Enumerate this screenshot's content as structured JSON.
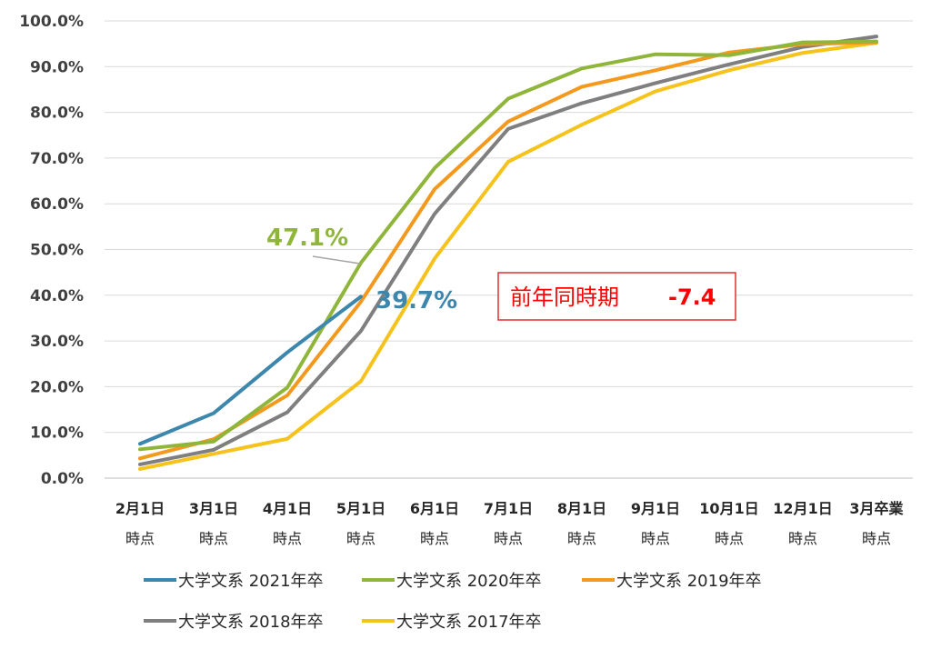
{
  "chart_data": {
    "type": "line",
    "categories": [
      [
        "2月1日",
        "時点"
      ],
      [
        "3月1日",
        "時点"
      ],
      [
        "4月1日",
        "時点"
      ],
      [
        "5月1日",
        "時点"
      ],
      [
        "6月1日",
        "時点"
      ],
      [
        "7月1日",
        "時点"
      ],
      [
        "8月1日",
        "時点"
      ],
      [
        "9月1日",
        "時点"
      ],
      [
        "10月1日",
        "時点"
      ],
      [
        "12月1日",
        "時点"
      ],
      [
        "3月卒業",
        "時点"
      ]
    ],
    "y_ticks": [
      "0.0%",
      "10.0%",
      "20.0%",
      "30.0%",
      "40.0%",
      "50.0%",
      "60.0%",
      "70.0%",
      "80.0%",
      "90.0%",
      "100.0%"
    ],
    "ylim": [
      0,
      100
    ],
    "grid": true,
    "legend_position": "bottom",
    "series": [
      {
        "name": "大学文系 2021年卒",
        "color": "#3d87ad",
        "values": [
          7.5,
          14.2,
          27.5,
          39.7,
          null,
          null,
          null,
          null,
          null,
          null,
          null
        ]
      },
      {
        "name": "大学文系 2020年卒",
        "color": "#8fb63a",
        "values": [
          6.3,
          8.0,
          19.8,
          47.1,
          67.8,
          83.0,
          89.6,
          92.7,
          92.5,
          95.3,
          95.5
        ]
      },
      {
        "name": "大学文系 2019年卒",
        "color": "#f39a1e",
        "values": [
          4.3,
          8.5,
          18.1,
          38.6,
          63.2,
          78.0,
          85.6,
          89.2,
          93.1,
          94.9,
          95.3
        ]
      },
      {
        "name": "大学文系 2018年卒",
        "color": "#7f7f7f",
        "values": [
          3.0,
          6.2,
          14.4,
          32.2,
          57.8,
          76.4,
          82.0,
          86.4,
          90.5,
          94.3,
          96.6
        ]
      },
      {
        "name": "大学文系 2017年卒",
        "color": "#f5c31c",
        "values": [
          2.0,
          5.3,
          8.6,
          21.2,
          48.0,
          69.2,
          77.3,
          84.6,
          89.2,
          93.0,
          95.2
        ]
      }
    ],
    "annotations": {
      "green_label": "47.1%",
      "blue_label": "39.7%",
      "box_label": "前年同時期",
      "box_value": "-7.4"
    }
  }
}
